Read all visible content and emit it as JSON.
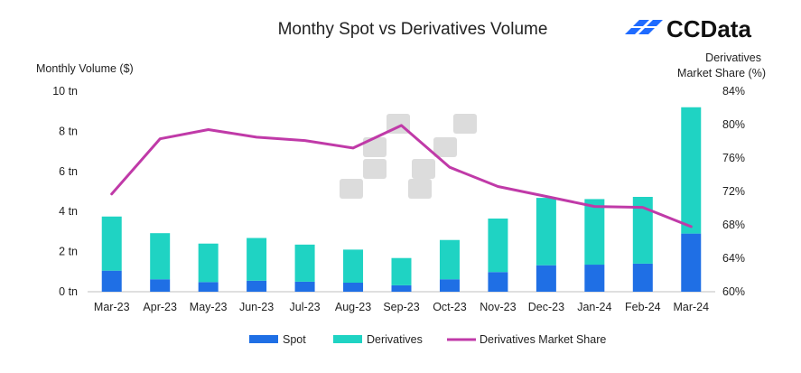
{
  "brand": {
    "name": "CCData",
    "accent": "#1f6bff"
  },
  "colors": {
    "spot": "#1f6fe5",
    "derivatives": "#1fd3c3",
    "share": "#c03aa8",
    "watermark": "#d6d6d6"
  },
  "chart_data": {
    "type": "bar",
    "stacked": true,
    "title": "Monthy Spot vs Derivatives Volume",
    "ylabel": "Monthly Volume ($)",
    "y2label_line1": "Derivatives",
    "y2label_line2": "Market Share (%)",
    "categories": [
      "Mar-23",
      "Apr-23",
      "May-23",
      "Jun-23",
      "Jul-23",
      "Aug-23",
      "Sep-23",
      "Oct-23",
      "Nov-23",
      "Dec-23",
      "Jan-24",
      "Feb-24",
      "Mar-24"
    ],
    "ylim": [
      0,
      10
    ],
    "y_ticks": [
      0,
      2,
      4,
      6,
      8,
      10
    ],
    "y_tick_labels": [
      "0 tn",
      "2 tn",
      "4 tn",
      "6 tn",
      "8 tn",
      "10 tn"
    ],
    "y2lim": [
      60,
      84
    ],
    "y2_ticks": [
      60,
      64,
      68,
      72,
      76,
      80,
      84
    ],
    "y2_tick_labels": [
      "60%",
      "64%",
      "68%",
      "72%",
      "76%",
      "80%",
      "84%"
    ],
    "series": [
      {
        "name": "Spot",
        "axis": "left",
        "kind": "bar",
        "values": [
          1.05,
          0.62,
          0.48,
          0.55,
          0.5,
          0.45,
          0.32,
          0.62,
          0.98,
          1.32,
          1.35,
          1.4,
          2.9
        ]
      },
      {
        "name": "Derivatives",
        "axis": "left",
        "kind": "bar",
        "values": [
          2.7,
          2.3,
          1.92,
          2.13,
          1.85,
          1.65,
          1.36,
          1.96,
          2.67,
          3.36,
          3.27,
          3.33,
          6.3
        ]
      },
      {
        "name": "Derivatives Market Share",
        "axis": "right",
        "kind": "line",
        "values": [
          71.7,
          78.3,
          79.4,
          78.5,
          78.1,
          77.2,
          79.9,
          74.9,
          72.6,
          71.4,
          70.2,
          70.1,
          67.8
        ]
      }
    ],
    "legend": [
      "Spot",
      "Derivatives",
      "Derivatives Market Share"
    ],
    "legend_position": "bottom-center"
  }
}
